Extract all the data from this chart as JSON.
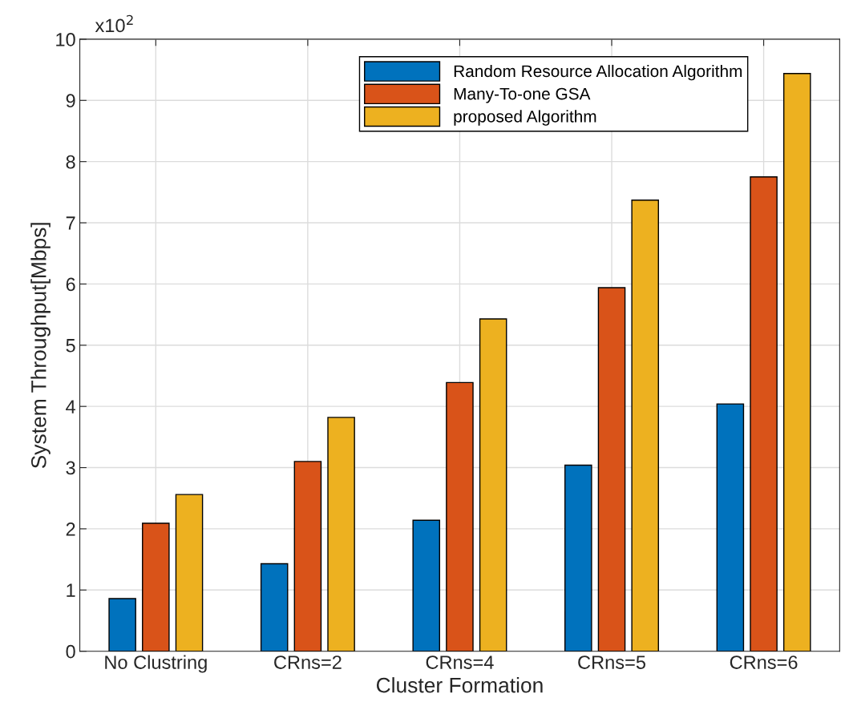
{
  "chart_data": {
    "type": "bar",
    "xlabel": "Cluster Formation",
    "ylabel": "System Throughput[Mbps]",
    "categories": [
      "No Clustring",
      "CRns=2",
      "CRns=4",
      "CRns=5",
      "CRns=6"
    ],
    "series": [
      {
        "name": "Random Resource Allocation Algorithm",
        "color": "#0072bd",
        "values": [
          0.86,
          1.43,
          2.14,
          3.04,
          4.04
        ]
      },
      {
        "name": "Many-To-one GSA",
        "color": "#d95319",
        "values": [
          2.09,
          3.1,
          4.39,
          5.94,
          7.75
        ]
      },
      {
        "name": "proposed Algorithm",
        "color": "#edb120",
        "values": [
          2.56,
          3.82,
          5.43,
          7.37,
          9.44
        ]
      }
    ],
    "ylim": [
      0,
      10
    ],
    "yticks": [
      0,
      1,
      2,
      3,
      4,
      5,
      6,
      7,
      8,
      9,
      10
    ],
    "annotations": [
      "x10$^{2}$"
    ],
    "grid": true,
    "legend": "top right"
  }
}
